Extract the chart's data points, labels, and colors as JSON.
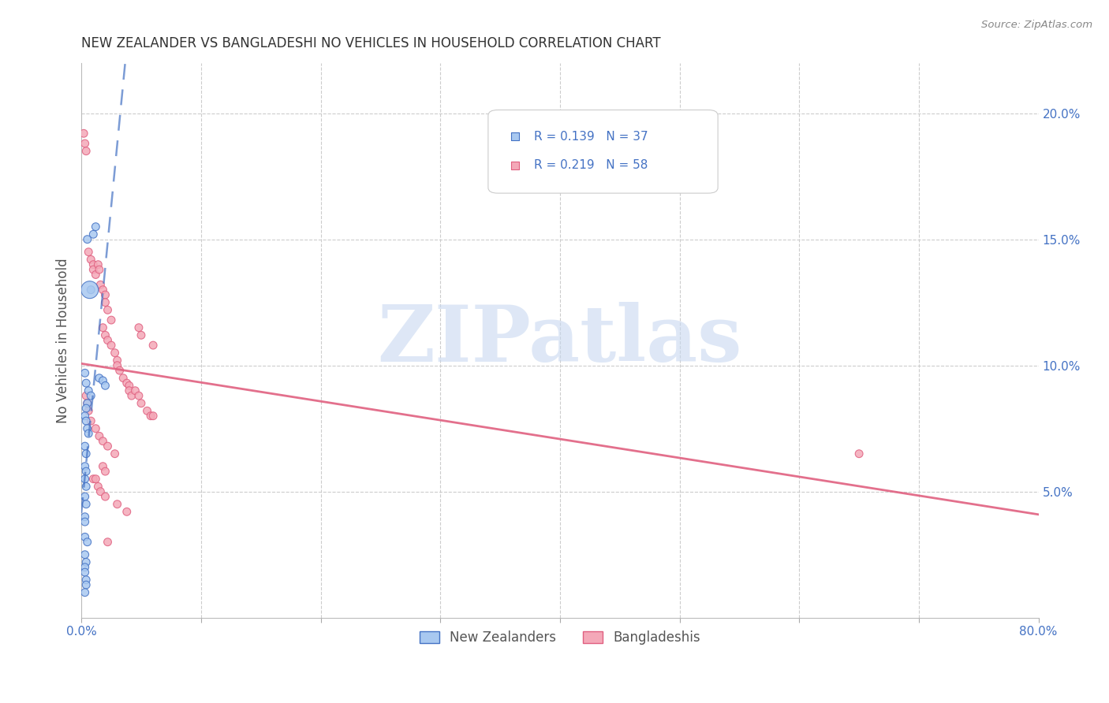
{
  "title": "NEW ZEALANDER VS BANGLADESHI NO VEHICLES IN HOUSEHOLD CORRELATION CHART",
  "source": "Source: ZipAtlas.com",
  "ylabel": "No Vehicles in Household",
  "xlim": [
    0.0,
    0.8
  ],
  "ylim": [
    0.0,
    0.22
  ],
  "yticks_right": [
    0.05,
    0.1,
    0.15,
    0.2
  ],
  "ytick_right_labels": [
    "5.0%",
    "10.0%",
    "15.0%",
    "20.0%"
  ],
  "nz_color": "#A8C8F0",
  "bd_color": "#F4A8B8",
  "nz_line_color": "#4472C4",
  "bd_line_color": "#E06080",
  "nz_R": 0.139,
  "nz_N": 37,
  "bd_R": 0.219,
  "bd_N": 58,
  "watermark": "ZIPatlas",
  "watermark_color": "#C8D8F0",
  "legend_color": "#4472C4",
  "background_color": "#FFFFFF",
  "grid_color": "#CCCCCC",
  "title_color": "#333333",
  "axis_label_color": "#555555",
  "nz_x": [
    0.01,
    0.012,
    0.005,
    0.008,
    0.015,
    0.018,
    0.02,
    0.007,
    0.003,
    0.004,
    0.006,
    0.008,
    0.005,
    0.004,
    0.003,
    0.004,
    0.005,
    0.006,
    0.003,
    0.004,
    0.003,
    0.004,
    0.003,
    0.004,
    0.003,
    0.004,
    0.003,
    0.003,
    0.003,
    0.005,
    0.003,
    0.004,
    0.003,
    0.003,
    0.004,
    0.004,
    0.003
  ],
  "nz_y": [
    0.152,
    0.155,
    0.15,
    0.13,
    0.095,
    0.094,
    0.092,
    0.13,
    0.097,
    0.093,
    0.09,
    0.088,
    0.085,
    0.083,
    0.08,
    0.078,
    0.075,
    0.073,
    0.068,
    0.065,
    0.06,
    0.058,
    0.055,
    0.052,
    0.048,
    0.045,
    0.04,
    0.038,
    0.032,
    0.03,
    0.025,
    0.022,
    0.02,
    0.018,
    0.015,
    0.013,
    0.01
  ],
  "nz_sizes": [
    50,
    50,
    50,
    50,
    50,
    50,
    50,
    250,
    50,
    50,
    50,
    50,
    50,
    50,
    50,
    50,
    50,
    50,
    50,
    50,
    50,
    50,
    50,
    50,
    50,
    50,
    50,
    50,
    50,
    50,
    50,
    50,
    50,
    50,
    50,
    50,
    50
  ],
  "bd_x": [
    0.002,
    0.003,
    0.004,
    0.006,
    0.008,
    0.01,
    0.01,
    0.012,
    0.014,
    0.015,
    0.016,
    0.018,
    0.02,
    0.02,
    0.022,
    0.025,
    0.018,
    0.02,
    0.022,
    0.025,
    0.028,
    0.03,
    0.03,
    0.032,
    0.035,
    0.038,
    0.04,
    0.04,
    0.042,
    0.045,
    0.048,
    0.05,
    0.055,
    0.058,
    0.06,
    0.048,
    0.05,
    0.06,
    0.004,
    0.005,
    0.006,
    0.008,
    0.012,
    0.015,
    0.018,
    0.022,
    0.028,
    0.018,
    0.02,
    0.01,
    0.012,
    0.014,
    0.016,
    0.02,
    0.03,
    0.038,
    0.022,
    0.65
  ],
  "bd_y": [
    0.192,
    0.188,
    0.185,
    0.145,
    0.142,
    0.14,
    0.138,
    0.136,
    0.14,
    0.138,
    0.132,
    0.13,
    0.128,
    0.125,
    0.122,
    0.118,
    0.115,
    0.112,
    0.11,
    0.108,
    0.105,
    0.102,
    0.1,
    0.098,
    0.095,
    0.093,
    0.092,
    0.09,
    0.088,
    0.09,
    0.088,
    0.085,
    0.082,
    0.08,
    0.08,
    0.115,
    0.112,
    0.108,
    0.088,
    0.085,
    0.082,
    0.078,
    0.075,
    0.072,
    0.07,
    0.068,
    0.065,
    0.06,
    0.058,
    0.055,
    0.055,
    0.052,
    0.05,
    0.048,
    0.045,
    0.042,
    0.03,
    0.065
  ],
  "bd_sizes": [
    50,
    50,
    50,
    50,
    50,
    50,
    50,
    50,
    50,
    50,
    50,
    50,
    50,
    50,
    50,
    50,
    50,
    50,
    50,
    50,
    50,
    50,
    50,
    50,
    50,
    50,
    50,
    50,
    50,
    50,
    50,
    50,
    50,
    50,
    50,
    50,
    50,
    50,
    50,
    50,
    50,
    50,
    50,
    50,
    50,
    50,
    50,
    50,
    50,
    50,
    50,
    50,
    50,
    50,
    50,
    50,
    50,
    50
  ]
}
